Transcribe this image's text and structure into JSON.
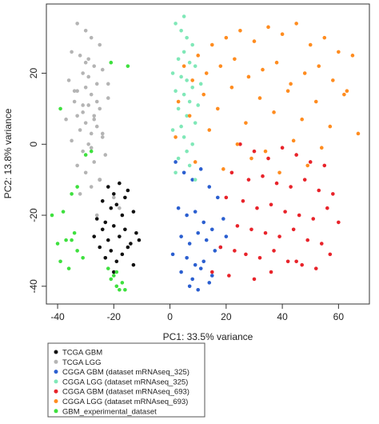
{
  "chart_data": {
    "type": "scatter",
    "x_label": "PC1: 33.5% variance",
    "y_label": "PC2: 13.8% variance",
    "xlim": [
      -44,
      71
    ],
    "ylim": [
      -45,
      39.5
    ],
    "xticks": [
      -40,
      -20,
      0,
      20,
      40,
      60
    ],
    "yticks": [
      -40,
      -20,
      0,
      20
    ],
    "series": [
      {
        "name": "TCGA GBM",
        "color": "#111111",
        "x": [
          -25,
          -22,
          -20,
          -18,
          -15,
          -24,
          -21,
          -19,
          -17,
          -13,
          -26,
          -23,
          -20,
          -16,
          -12,
          -27,
          -22,
          -18,
          -14,
          -11,
          -25,
          -21,
          -17,
          -15,
          -23,
          -19,
          -13,
          -20,
          -24,
          -16
        ],
        "values": [
          -10,
          -12,
          -14,
          -11,
          -13,
          -16,
          -18,
          -17,
          -20,
          -19,
          -21,
          -22,
          -23,
          -24,
          -25,
          -26,
          -27,
          -26,
          -28,
          -27,
          -29,
          -30,
          -31,
          -29,
          -32,
          -33,
          -34,
          -36,
          -24,
          -15
        ]
      },
      {
        "name": "TCGA LGG",
        "color": "#b4b4b4",
        "x": [
          -33,
          -30,
          -28,
          -25,
          -35,
          -32,
          -29,
          -27,
          -24,
          -31,
          -36,
          -26,
          -30,
          -33,
          -28,
          -22,
          -34,
          -29,
          -25,
          -31,
          -27,
          -37,
          -30,
          -26,
          -32,
          -28,
          -24,
          -35,
          -29,
          -31,
          -23,
          -27,
          -33,
          -30,
          -25,
          -28,
          -32,
          -20,
          -18,
          -26,
          -29,
          -34,
          -31,
          -27,
          -24,
          -30,
          -22,
          -28,
          -26,
          -33
        ],
        "values": [
          34,
          32,
          30,
          28,
          26,
          25,
          24,
          22,
          21,
          20,
          18,
          17,
          16,
          15,
          14,
          13,
          12,
          11,
          10,
          9,
          8,
          7,
          6,
          5,
          4,
          3,
          2,
          1,
          0,
          -2,
          -3,
          -5,
          -6,
          -8,
          -10,
          -12,
          -14,
          -15,
          -18,
          -20,
          19,
          15,
          11,
          7,
          3,
          23,
          17,
          -1,
          12,
          8
        ]
      },
      {
        "name": "CGGA GBM (dataset mRNAseq_325)",
        "color": "#2b5fd0",
        "x": [
          2,
          5,
          8,
          11,
          14,
          17,
          3,
          6,
          9,
          12,
          15,
          19,
          4,
          7,
          10,
          13,
          16,
          1,
          6,
          9,
          12,
          18,
          4,
          8,
          11,
          15,
          7,
          10,
          14,
          20
        ],
        "values": [
          -5,
          -8,
          -10,
          -7,
          -12,
          -15,
          -18,
          -20,
          -19,
          -22,
          -24,
          -21,
          -26,
          -28,
          -25,
          -27,
          -30,
          -31,
          -32,
          -34,
          -33,
          -29,
          -36,
          -38,
          -35,
          -37,
          -40,
          -41,
          -39,
          -26
        ]
      },
      {
        "name": "CGGA LGG (dataset mRNAseq_325)",
        "color": "#80e8b8",
        "x": [
          2,
          4,
          6,
          8,
          5,
          3,
          7,
          9,
          1,
          4,
          6,
          8,
          2,
          5,
          7,
          10,
          3,
          6,
          9,
          4,
          1,
          5,
          8,
          6,
          3,
          7,
          2,
          9,
          5,
          11
        ],
        "values": [
          34,
          32,
          30,
          28,
          26,
          24,
          23,
          22,
          20,
          19,
          18,
          16,
          15,
          14,
          12,
          11,
          10,
          8,
          6,
          5,
          4,
          2,
          0,
          -2,
          -4,
          -6,
          -8,
          -10,
          36,
          17
        ]
      },
      {
        "name": "CGGA GBM (dataset mRNAseq_693)",
        "color": "#e8232a",
        "x": [
          25,
          30,
          35,
          40,
          45,
          50,
          55,
          22,
          28,
          33,
          38,
          43,
          48,
          53,
          58,
          20,
          26,
          31,
          36,
          41,
          46,
          51,
          56,
          60,
          24,
          29,
          34,
          39,
          44,
          49,
          54,
          18,
          23,
          27,
          32,
          37,
          42,
          47,
          52,
          57,
          15,
          21,
          30,
          36,
          45
        ],
        "values": [
          0,
          -2,
          -4,
          -1,
          -3,
          -5,
          -6,
          -8,
          -10,
          -9,
          -11,
          -12,
          -10,
          -13,
          -14,
          -15,
          -16,
          -18,
          -17,
          -19,
          -20,
          -21,
          -18,
          -22,
          -23,
          -24,
          -25,
          -26,
          -24,
          -27,
          -28,
          -29,
          -30,
          -31,
          -32,
          -30,
          -33,
          -34,
          -35,
          -31,
          -36,
          -37,
          -38,
          -36,
          -33
        ]
      },
      {
        "name": "CGGA LGG (dataset mRNAseq_693)",
        "color": "#ff8c1f",
        "x": [
          5,
          10,
          15,
          20,
          25,
          30,
          35,
          40,
          45,
          50,
          55,
          60,
          65,
          8,
          13,
          18,
          23,
          28,
          33,
          38,
          43,
          48,
          53,
          58,
          63,
          3,
          12,
          22,
          32,
          42,
          52,
          62,
          7,
          17,
          27,
          37,
          47,
          57,
          67,
          2,
          14,
          24,
          34,
          44,
          54,
          9,
          19,
          29,
          39,
          49
        ],
        "values": [
          22,
          25,
          28,
          30,
          32,
          29,
          33,
          31,
          34,
          28,
          30,
          26,
          25,
          18,
          20,
          22,
          24,
          19,
          21,
          23,
          17,
          20,
          22,
          18,
          15,
          12,
          14,
          16,
          13,
          15,
          12,
          14,
          8,
          10,
          6,
          9,
          7,
          5,
          3,
          2,
          4,
          0,
          -2,
          1,
          -1,
          -5,
          -7,
          -4,
          -8,
          -6
        ]
      },
      {
        "name": "GBM_experimental_dataset",
        "color": "#3ee03e",
        "x": [
          -40,
          -37,
          -35,
          -33,
          -31,
          -39,
          -36,
          -34,
          -21,
          -19,
          -18,
          -22,
          -20,
          -17,
          -38,
          -35,
          -42,
          -30,
          -16,
          -19,
          -28,
          -21,
          -39,
          -33,
          -15
        ],
        "values": [
          -28,
          -27,
          -27,
          -30,
          -32,
          -33,
          -35,
          -25,
          -38,
          -40,
          -41,
          -35,
          -37,
          -39,
          -19,
          -14,
          -20,
          -3,
          -41,
          -36,
          -2,
          23,
          10,
          -12,
          22
        ]
      }
    ]
  }
}
